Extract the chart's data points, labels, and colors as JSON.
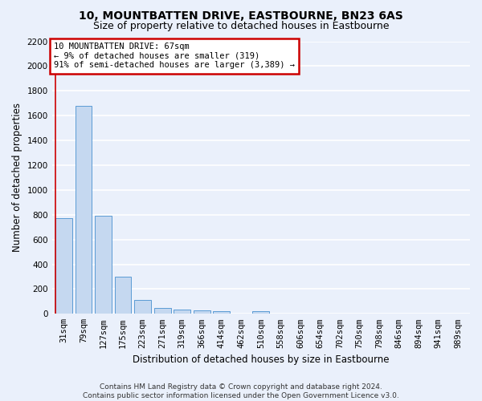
{
  "title": "10, MOUNTBATTEN DRIVE, EASTBOURNE, BN23 6AS",
  "subtitle": "Size of property relative to detached houses in Eastbourne",
  "xlabel": "Distribution of detached houses by size in Eastbourne",
  "ylabel": "Number of detached properties",
  "categories": [
    "31sqm",
    "79sqm",
    "127sqm",
    "175sqm",
    "223sqm",
    "271sqm",
    "319sqm",
    "366sqm",
    "414sqm",
    "462sqm",
    "510sqm",
    "558sqm",
    "606sqm",
    "654sqm",
    "702sqm",
    "750sqm",
    "798sqm",
    "846sqm",
    "894sqm",
    "941sqm",
    "989sqm"
  ],
  "values": [
    770,
    1680,
    795,
    300,
    110,
    45,
    32,
    27,
    23,
    0,
    22,
    0,
    0,
    0,
    0,
    0,
    0,
    0,
    0,
    0,
    0
  ],
  "bar_color": "#c5d8f0",
  "bar_edge_color": "#5b9bd5",
  "annotation_box_text": "10 MOUNTBATTEN DRIVE: 67sqm\n← 9% of detached houses are smaller (319)\n91% of semi-detached houses are larger (3,389) →",
  "annotation_box_color": "#ffffff",
  "annotation_box_edge_color": "#cc0000",
  "vline_color": "#cc0000",
  "ylim": [
    0,
    2200
  ],
  "yticks": [
    0,
    200,
    400,
    600,
    800,
    1000,
    1200,
    1400,
    1600,
    1800,
    2000,
    2200
  ],
  "footnote": "Contains HM Land Registry data © Crown copyright and database right 2024.\nContains public sector information licensed under the Open Government Licence v3.0.",
  "bg_color": "#eaf0fb",
  "plot_bg_color": "#eaf0fb",
  "grid_color": "#ffffff",
  "title_fontsize": 10,
  "subtitle_fontsize": 9,
  "axis_label_fontsize": 8.5,
  "tick_fontsize": 7.5,
  "annotation_fontsize": 7.5,
  "footnote_fontsize": 6.5
}
